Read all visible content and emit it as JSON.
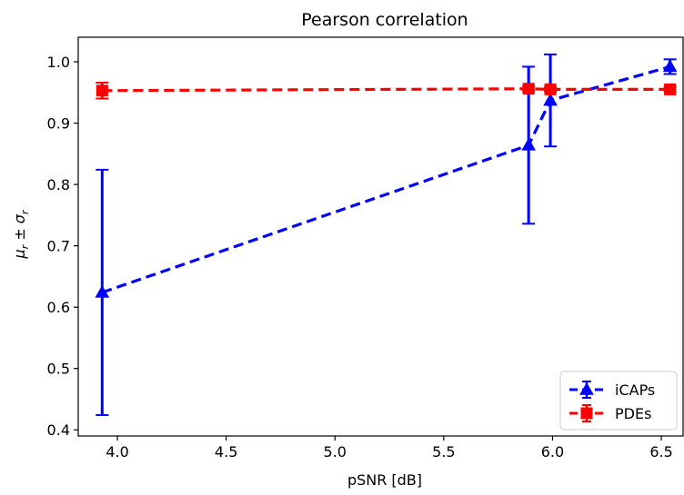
{
  "chart_data": {
    "type": "line",
    "title": "Pearson correlation",
    "xlabel": "pSNR [dB]",
    "ylabel_main": "μ",
    "ylabel_sub1": "r",
    "ylabel_mid": " ± ",
    "ylabel_main2": "σ",
    "ylabel_sub2": "r",
    "xlim": [
      3.82,
      6.6
    ],
    "ylim": [
      0.39,
      1.04
    ],
    "x_ticks": [
      4.0,
      4.5,
      5.0,
      5.5,
      6.0,
      6.5
    ],
    "x_tick_labels": [
      "4.0",
      "4.5",
      "5.0",
      "5.5",
      "6.0",
      "6.5"
    ],
    "y_ticks": [
      0.4,
      0.5,
      0.6,
      0.7,
      0.8,
      0.9,
      1.0
    ],
    "y_tick_labels": [
      "0.4",
      "0.5",
      "0.6",
      "0.7",
      "0.8",
      "0.9",
      "1.0"
    ],
    "grid": false,
    "legend_position": "bottom-right",
    "series": [
      {
        "name": "iCAPs",
        "color": "#0000ff",
        "marker": "triangle",
        "linestyle": "dashed",
        "x": [
          3.93,
          5.89,
          5.99,
          6.54
        ],
        "y": [
          0.624,
          0.864,
          0.937,
          0.992
        ],
        "yerr": [
          0.2,
          0.128,
          0.075,
          0.012
        ]
      },
      {
        "name": "PDEs",
        "color": "#ff0000",
        "marker": "square",
        "linestyle": "dashed",
        "x": [
          3.93,
          5.89,
          5.99,
          6.54
        ],
        "y": [
          0.953,
          0.956,
          0.955,
          0.955
        ],
        "yerr": [
          0.013,
          0.004,
          0.004,
          0.004
        ]
      }
    ]
  }
}
